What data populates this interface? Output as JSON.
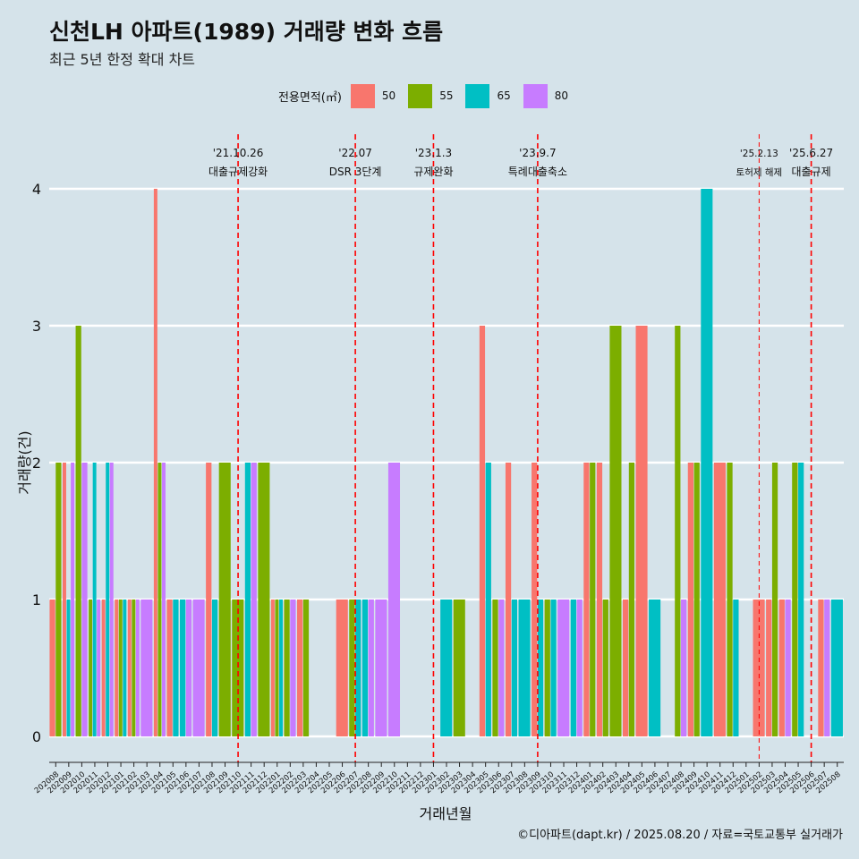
{
  "title": "신천LH 아파트(1989) 거래량 변화 흐름",
  "subtitle": "최근 5년 한정 확대 차트",
  "caption": "©디아파트(dapt.kr) / 2025.08.20 / 자료=국토교통부 실거래가",
  "legend": {
    "title": "전용면적(㎡)",
    "items": [
      {
        "label": "50",
        "color": "#F8766D"
      },
      {
        "label": "55",
        "color": "#7CAE00"
      },
      {
        "label": "65",
        "color": "#00BFC4"
      },
      {
        "label": "80",
        "color": "#C77CFF"
      }
    ]
  },
  "chart_data": {
    "type": "bar",
    "xlabel": "거래년월",
    "ylabel": "거래량(건)",
    "ylim": [
      0,
      4
    ],
    "yticks": [
      0,
      1,
      2,
      3,
      4
    ],
    "grid": true,
    "legend_position": "top",
    "series_order": [
      "50",
      "55",
      "65",
      "80"
    ],
    "colors": {
      "50": "#F8766D",
      "55": "#7CAE00",
      "65": "#00BFC4",
      "80": "#C77CFF"
    },
    "categories": [
      "202008",
      "202009",
      "202010",
      "202011",
      "202012",
      "202101",
      "202102",
      "202103",
      "202104",
      "202105",
      "202106",
      "202107",
      "202108",
      "202109",
      "202110",
      "202111",
      "202112",
      "202201",
      "202202",
      "202203",
      "202204",
      "202205",
      "202206",
      "202207",
      "202208",
      "202209",
      "202210",
      "202211",
      "202212",
      "202301",
      "202302",
      "202303",
      "202304",
      "202305",
      "202306",
      "202307",
      "202308",
      "202309",
      "202310",
      "202311",
      "202312",
      "202401",
      "202402",
      "202403",
      "202404",
      "202405",
      "202406",
      "202407",
      "202408",
      "202409",
      "202410",
      "202411",
      "202412",
      "202501",
      "202502",
      "202503",
      "202504",
      "202505",
      "202506",
      "202507",
      "202508"
    ],
    "data": {
      "202008": {
        "50": 1,
        "55": 2
      },
      "202009": {
        "50": 2,
        "65": 1,
        "80": 2
      },
      "202010": {
        "55": 3,
        "80": 2
      },
      "202011": {
        "55": 1,
        "65": 2,
        "80": 1
      },
      "202012": {
        "50": 1,
        "65": 2,
        "80": 2
      },
      "202101": {
        "50": 1,
        "55": 1,
        "65": 1
      },
      "202102": {
        "50": 1,
        "55": 1,
        "80": 1
      },
      "202103": {
        "80": 1
      },
      "202104": {
        "50": 4,
        "55": 2,
        "80": 2
      },
      "202105": {
        "50": 1,
        "65": 1
      },
      "202106": {
        "65": 1,
        "80": 1
      },
      "202107": {
        "80": 1
      },
      "202108": {
        "50": 2,
        "65": 1
      },
      "202109": {
        "55": 2
      },
      "202110": {
        "55": 1
      },
      "202111": {
        "65": 2,
        "80": 2
      },
      "202112": {
        "55": 2
      },
      "202201": {
        "50": 1,
        "55": 1,
        "65": 1
      },
      "202202": {
        "55": 1,
        "80": 1
      },
      "202203": {
        "50": 1,
        "55": 1
      },
      "202204": {},
      "202205": {},
      "202206": {
        "50": 1
      },
      "202207": {
        "55": 1,
        "65": 1
      },
      "202208": {
        "65": 1,
        "80": 1
      },
      "202209": {
        "80": 1
      },
      "202210": {
        "80": 2
      },
      "202211": {},
      "202212": {},
      "202301": {},
      "202302": {
        "65": 1
      },
      "202303": {
        "55": 1
      },
      "202304": {},
      "202305": {
        "50": 3,
        "65": 2
      },
      "202306": {
        "55": 1,
        "80": 1
      },
      "202307": {
        "50": 2,
        "65": 1
      },
      "202308": {
        "65": 1
      },
      "202309": {
        "50": 2,
        "65": 1
      },
      "202310": {
        "55": 1,
        "65": 1
      },
      "202311": {
        "80": 1
      },
      "202312": {
        "65": 1,
        "80": 1
      },
      "202401": {
        "50": 2,
        "55": 2
      },
      "202402": {
        "50": 2,
        "55": 1
      },
      "202403": {
        "55": 3
      },
      "202404": {
        "50": 1,
        "55": 2
      },
      "202405": {
        "50": 3
      },
      "202406": {
        "65": 1
      },
      "202407": {},
      "202408": {
        "55": 3,
        "80": 1
      },
      "202409": {
        "50": 2,
        "55": 2
      },
      "202410": {
        "65": 4
      },
      "202411": {
        "50": 2
      },
      "202412": {
        "55": 2,
        "65": 1
      },
      "202501": {},
      "202502": {
        "50": 1
      },
      "202503": {
        "50": 1,
        "55": 2
      },
      "202504": {
        "50": 1,
        "80": 1
      },
      "202505": {
        "55": 2,
        "65": 2
      },
      "202506": {},
      "202507": {
        "50": 1,
        "80": 1
      },
      "202508": {
        "65": 1
      }
    },
    "annotations": [
      {
        "category": "202110",
        "date": "'21.10.26",
        "label": "대출규제강화",
        "style": "major"
      },
      {
        "category": "202207",
        "date": "'22.07",
        "label": "DSR 3단계",
        "style": "major"
      },
      {
        "category": "202301",
        "date": "'23.1.3",
        "label": "규제완화",
        "style": "major"
      },
      {
        "category": "202309",
        "date": "'23.9.7",
        "label": "특례대출축소",
        "style": "major"
      },
      {
        "category": "202502",
        "date": "'25.2.13",
        "label": "토허제 해제",
        "style": "minor"
      },
      {
        "category": "202506",
        "date": "'25.6.27",
        "label": "대출규제",
        "style": "major"
      }
    ]
  }
}
